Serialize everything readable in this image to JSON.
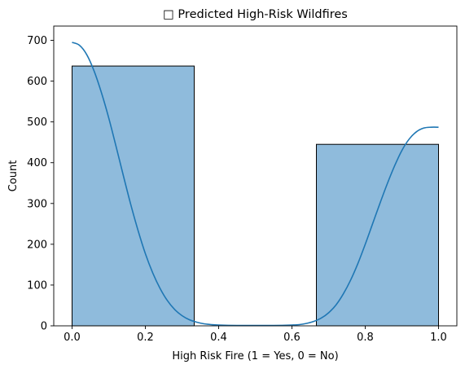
{
  "chart_data": {
    "type": "bar",
    "title": "□ Predicted High-Risk Wildfires",
    "xlabel": "High Risk Fire (1 = Yes, 0 = No)",
    "ylabel": "Count",
    "xlim": [
      -0.05,
      1.05
    ],
    "ylim": [
      0,
      735
    ],
    "xticks": [
      "0.0",
      "0.2",
      "0.4",
      "0.6",
      "0.8",
      "1.0"
    ],
    "xtick_values": [
      0.0,
      0.2,
      0.4,
      0.6,
      0.8,
      1.0
    ],
    "yticks": [
      "0",
      "100",
      "200",
      "300",
      "400",
      "500",
      "600",
      "700"
    ],
    "ytick_values": [
      0,
      100,
      200,
      300,
      400,
      500,
      600,
      700
    ],
    "bins": [
      {
        "x0": 0.0,
        "x1": 0.3333,
        "count": 637
      },
      {
        "x0": 0.3333,
        "x1": 0.6667,
        "count": 0
      },
      {
        "x0": 0.6667,
        "x1": 1.0,
        "count": 445
      }
    ],
    "kde": {
      "x": [
        0.0,
        0.02,
        0.04,
        0.06,
        0.08,
        0.1,
        0.12,
        0.14,
        0.16,
        0.18,
        0.2,
        0.22,
        0.24,
        0.26,
        0.28,
        0.3,
        0.32,
        0.34,
        0.36,
        0.38,
        0.4,
        0.45,
        0.5,
        0.55,
        0.6,
        0.62,
        0.64,
        0.66,
        0.68,
        0.7,
        0.72,
        0.74,
        0.76,
        0.78,
        0.8,
        0.82,
        0.84,
        0.86,
        0.88,
        0.9,
        0.92,
        0.94,
        0.96,
        0.98,
        1.0
      ],
      "y": [
        695,
        688,
        665,
        625,
        572,
        510,
        440,
        368,
        298,
        234,
        177,
        130,
        92,
        62,
        40,
        25,
        15,
        9,
        5,
        3,
        2,
        1,
        1,
        1,
        2,
        3,
        6,
        11,
        19,
        32,
        51,
        78,
        112,
        153,
        200,
        250,
        300,
        348,
        392,
        430,
        458,
        476,
        485,
        487,
        487
      ]
    },
    "bar_color": "#8fbbdc",
    "bar_edge": "#000000",
    "line_color": "#1f77b4",
    "grid": false
  }
}
